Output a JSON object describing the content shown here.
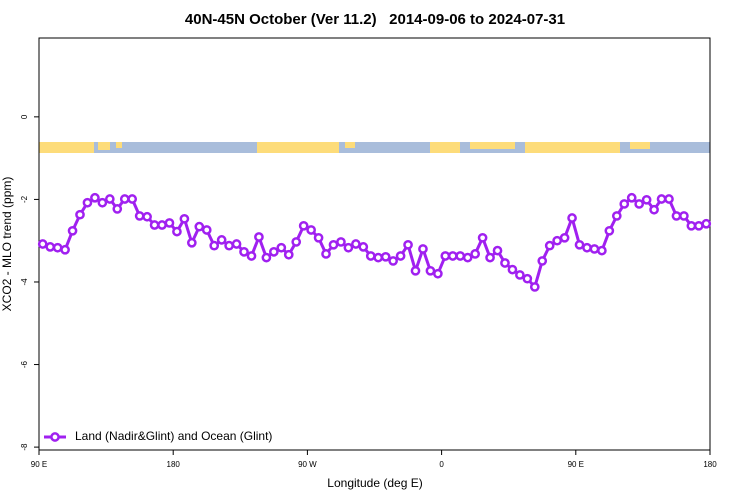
{
  "chart_data": {
    "type": "line",
    "title": "40N-45N October (Ver 11.2)   2014-09-06 to 2024-07-31",
    "x_label": "Longitude (deg E)",
    "y_label": "XCO2 - MLO trend (ppm)",
    "xlim": [
      90,
      540
    ],
    "xticks": [
      {
        "value": 90,
        "label": "90 E"
      },
      180,
      {
        "value": 270,
        "label": "90 W"
      },
      {
        "value": 360,
        "label": "0"
      },
      {
        "value": 450,
        "label": "90 E"
      },
      {
        "value": 540,
        "label": "180"
      }
    ],
    "ylim": [
      -8.07,
      1.91
    ],
    "yticks": [
      0,
      -2,
      -4,
      -6,
      -8
    ],
    "legend": "lower left",
    "x": [
      92.5,
      97.5,
      102.5,
      107.5,
      112.5,
      117.5,
      122.5,
      127.5,
      132.5,
      137.5,
      142.5,
      147.5,
      152.5,
      157.5,
      162.5,
      167.5,
      172.5,
      177.5,
      182.5,
      187.5,
      192.5,
      197.5,
      202.5,
      207.5,
      212.5,
      217.5,
      222.5,
      227.5,
      232.5,
      237.5,
      242.5,
      247.5,
      252.5,
      257.5,
      262.5,
      267.5,
      272.5,
      277.5,
      282.5,
      287.5,
      292.5,
      297.5,
      302.5,
      307.5,
      312.5,
      317.5,
      322.5,
      327.5,
      332.5,
      337.5,
      342.5,
      347.5,
      352.5,
      357.5,
      362.5,
      367.5,
      372.5,
      377.5,
      382.5,
      387.5,
      392.5,
      397.5,
      402.5,
      407.5,
      412.5,
      417.5,
      422.5,
      427.5,
      432.5,
      437.5,
      442.5,
      447.5,
      452.5,
      457.5,
      462.5,
      467.5,
      472.5,
      477.5,
      482.5,
      487.5,
      492.5,
      497.5,
      502.5,
      507.5,
      512.5,
      517.5,
      522.5,
      527.5,
      532.5,
      537.5
    ],
    "series": [
      {
        "name": "Land (Nadir&Glint) and Ocean (Glint)",
        "color": "#a020f0",
        "values": [
          -3.08,
          -3.15,
          -3.17,
          -3.22,
          -2.76,
          -2.37,
          -2.08,
          -1.96,
          -2.08,
          -1.99,
          -2.23,
          -1.99,
          -1.99,
          -2.4,
          -2.42,
          -2.62,
          -2.62,
          -2.57,
          -2.78,
          -2.47,
          -3.05,
          -2.66,
          -2.74,
          -3.12,
          -2.98,
          -3.12,
          -3.08,
          -3.27,
          -3.37,
          -2.91,
          -3.41,
          -3.27,
          -3.17,
          -3.34,
          -3.03,
          -2.64,
          -2.74,
          -2.93,
          -3.32,
          -3.1,
          -3.03,
          -3.17,
          -3.08,
          -3.15,
          -3.37,
          -3.41,
          -3.39,
          -3.49,
          -3.37,
          -3.1,
          -3.73,
          -3.2,
          -3.73,
          -3.8,
          -3.37,
          -3.37,
          -3.37,
          -3.41,
          -3.32,
          -2.93,
          -3.41,
          -3.24,
          -3.54,
          -3.7,
          -3.83,
          -3.92,
          -4.12,
          -3.49,
          -3.12,
          -3,
          -2.93,
          -2.45,
          -3.1,
          -3.17,
          -3.2,
          -3.24,
          -2.76,
          -2.4,
          -2.11,
          -1.96,
          -2.11,
          -2.01,
          -2.25,
          -1.99,
          -1.99,
          -2.4,
          -2.4,
          -2.64,
          -2.64,
          -2.59
        ]
      }
    ]
  }
}
